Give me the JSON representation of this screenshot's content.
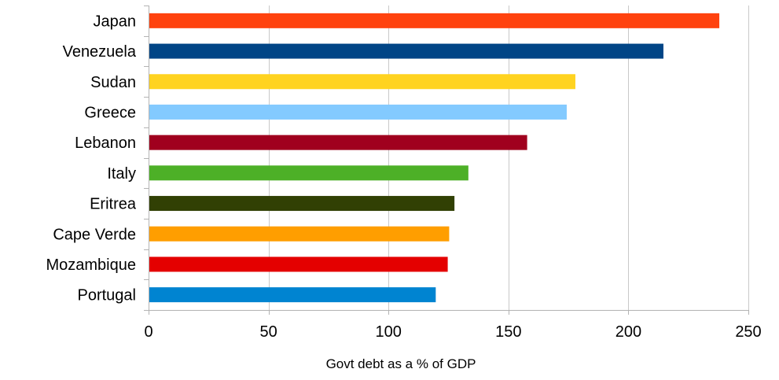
{
  "chart_data": {
    "type": "bar",
    "orientation": "horizontal",
    "title": "",
    "xlabel": "Govt debt as a % of GDP",
    "ylabel": "",
    "xlim": [
      0,
      250
    ],
    "x_ticks": [
      0,
      50,
      100,
      150,
      200,
      250
    ],
    "grid": true,
    "legend": "none",
    "categories": [
      "Japan",
      "Venezuela",
      "Sudan",
      "Greece",
      "Lebanon",
      "Italy",
      "Eritrea",
      "Cape Verde",
      "Mozambique",
      "Portugal"
    ],
    "values": [
      237.9,
      214.6,
      177.9,
      174.3,
      157.8,
      133.3,
      127.5,
      125.3,
      124.7,
      119.7
    ],
    "colors": [
      "#ff420e",
      "#004586",
      "#ffd320",
      "#83caff",
      "#a0001e",
      "#4db027",
      "#314004",
      "#ff9e00",
      "#e40000",
      "#0084d1"
    ]
  }
}
